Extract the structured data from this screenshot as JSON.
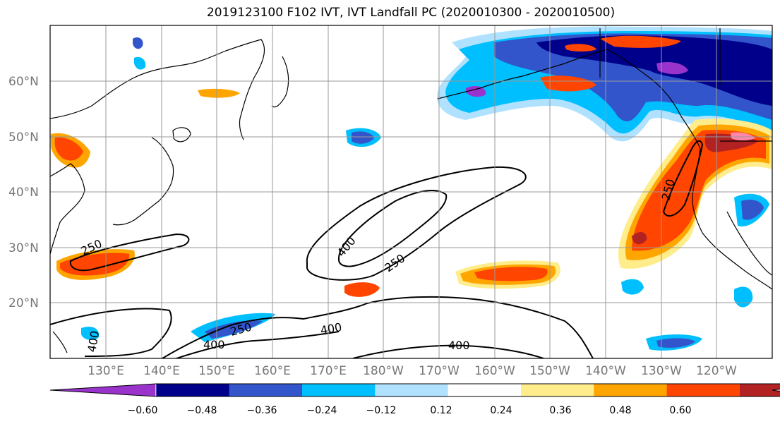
{
  "title": "2019123100 F102 IVT, IVT Landfall PC (2020010300 - 2020010500)",
  "map": {
    "lat_ticks": [
      "60°N",
      "50°N",
      "40°N",
      "30°N",
      "20°N"
    ],
    "lon_ticks": [
      "130°E",
      "140°E",
      "150°E",
      "160°E",
      "170°E",
      "180°W",
      "170°W",
      "160°W",
      "150°W",
      "140°W",
      "130°W",
      "120°W"
    ],
    "contour_labels": [
      "250",
      "400",
      "250",
      "400",
      "250",
      "400",
      "400",
      "400",
      "250"
    ]
  },
  "colorbar": {
    "tick_labels": [
      "−0.60",
      "−0.48",
      "−0.36",
      "−0.24",
      "−0.12",
      "0.12",
      "0.24",
      "0.36",
      "0.48",
      "0.60"
    ],
    "colors": [
      "#9933cc",
      "#00008b",
      "#3355cc",
      "#00bfff",
      "#b0e2ff",
      "#ffffff",
      "#ffec8b",
      "#ffa500",
      "#ff4500",
      "#b22222",
      "#ff88aa"
    ]
  }
}
